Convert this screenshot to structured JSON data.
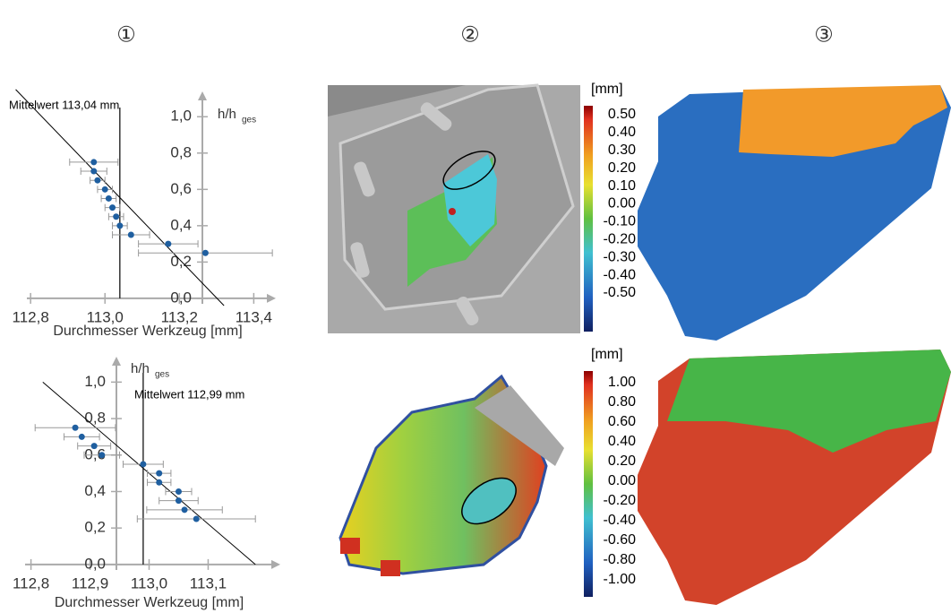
{
  "panel_labels": [
    "①",
    "②",
    "③"
  ],
  "chart_data": [
    {
      "type": "scatter",
      "xlabel": "Durchmesser Werkzeug [mm]",
      "ylabel": "h/h",
      "ylabel_sub": "ges",
      "annotation": "Mittelwert 113,04 mm",
      "mean": 113.04,
      "color": "#1f5fa0",
      "x": [
        112.97,
        112.97,
        112.98,
        113.0,
        113.01,
        113.02,
        113.03,
        113.04,
        113.07,
        113.17,
        113.27
      ],
      "y": [
        0.75,
        0.7,
        0.65,
        0.6,
        0.55,
        0.5,
        0.45,
        0.4,
        0.35,
        0.3,
        0.25
      ],
      "xerr": [
        0.065,
        0.035,
        0.02,
        0.02,
        0.02,
        0.02,
        0.02,
        0.02,
        0.05,
        0.08,
        0.18
      ],
      "trendline": {
        "x": [
          112.76,
          113.32
        ],
        "y": [
          1.15,
          -0.04
        ]
      },
      "xlim": [
        112.79,
        113.44
      ],
      "ylim": [
        -0.03,
        1.1
      ],
      "xticks": [
        {
          "value": 112.8,
          "label": "112,8"
        },
        {
          "value": 113.0,
          "label": "113,0"
        },
        {
          "value": 113.2,
          "label": "113,2"
        },
        {
          "value": 113.4,
          "label": "113,4"
        }
      ],
      "yticks": [
        {
          "value": 0,
          "label": "0,0"
        },
        {
          "value": 0.2,
          "label": "0,2"
        },
        {
          "value": 0.4,
          "label": "0,4"
        },
        {
          "value": 0.6,
          "label": "0,6"
        },
        {
          "value": 0.8,
          "label": "0,8"
        },
        {
          "value": 1,
          "label": "1,0"
        }
      ]
    },
    {
      "type": "scatter",
      "xlabel": "Durchmesser Werkzeug [mm]",
      "ylabel": "h/h",
      "ylabel_sub": "ges",
      "annotation": "Mittelwert 112,99 mm",
      "mean": 112.99,
      "color": "#1f5fa0",
      "x": [
        112.875,
        112.886,
        112.907,
        112.92,
        112.99,
        113.017,
        113.017,
        113.05,
        113.05,
        113.06,
        113.08
      ],
      "y": [
        0.75,
        0.7,
        0.65,
        0.6,
        0.55,
        0.5,
        0.45,
        0.4,
        0.35,
        0.3,
        0.25
      ],
      "xerr": [
        0.068,
        0.03,
        0.028,
        0.03,
        0.034,
        0.02,
        0.02,
        0.022,
        0.033,
        0.064,
        0.1
      ],
      "trendline": {
        "x": [
          112.82,
          113.18
        ],
        "y": [
          1.0,
          0.0
        ]
      },
      "xlim": [
        112.79,
        113.21
      ],
      "ylim": [
        -0.03,
        1.1
      ],
      "xticks": [
        {
          "value": 112.8,
          "label": "112,8"
        },
        {
          "value": 112.9,
          "label": "112,9"
        },
        {
          "value": 113.0,
          "label": "113,0"
        },
        {
          "value": 113.1,
          "label": "113,1"
        }
      ],
      "yticks": [
        {
          "value": 0,
          "label": "0,0"
        },
        {
          "value": 0.2,
          "label": "0,2"
        },
        {
          "value": 0.4,
          "label": "0,4"
        },
        {
          "value": 0.6,
          "label": "0,6"
        },
        {
          "value": 0.8,
          "label": "0,8"
        },
        {
          "value": 1,
          "label": "1,0"
        }
      ]
    }
  ],
  "colorbars": [
    {
      "unit": "[mm]",
      "labels": [
        "0.50",
        "0.40",
        "0.30",
        "0.20",
        "0.10",
        "0.00",
        "-0.10",
        "-0.20",
        "-0.30",
        "-0.40",
        "-0.50"
      ]
    },
    {
      "unit": "[mm]",
      "labels": [
        "1.00",
        "0.80",
        "0.60",
        "0.40",
        "0.20",
        "0.00",
        "-0.20",
        "-0.40",
        "-0.60",
        "-0.80",
        "-1.00"
      ]
    }
  ]
}
